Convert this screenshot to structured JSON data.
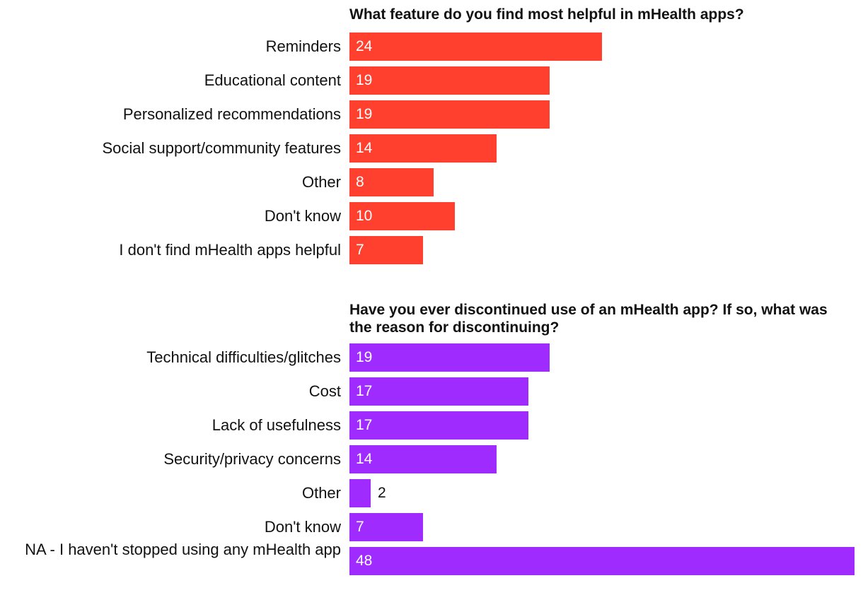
{
  "chart_data": [
    {
      "type": "bar",
      "orientation": "horizontal",
      "title": "What feature do you find most helpful in mHealth apps?",
      "color": "#ff402f",
      "categories": [
        "Reminders",
        "Educational content",
        "Personalized recommendations",
        "Social support/community features",
        "Other",
        "Don't know",
        "I don't find mHealth apps helpful"
      ],
      "values": [
        24,
        19,
        19,
        14,
        8,
        10,
        7
      ],
      "xlim": [
        0,
        48
      ],
      "grid": false,
      "legend": "none"
    },
    {
      "type": "bar",
      "orientation": "horizontal",
      "title": "Have you ever discontinued use of an mHealth app? If so, what was the reason for discontinuing?",
      "color": "#9f2bff",
      "categories": [
        "Technical difficulties/glitches",
        "Cost",
        "Lack of usefulness",
        "Security/privacy concerns",
        "Other",
        "Don't know",
        "NA - I haven't stopped using any mHealth app"
      ],
      "values": [
        19,
        17,
        17,
        14,
        2,
        7,
        48
      ],
      "xlim": [
        0,
        48
      ],
      "grid": false,
      "legend": "none"
    }
  ]
}
